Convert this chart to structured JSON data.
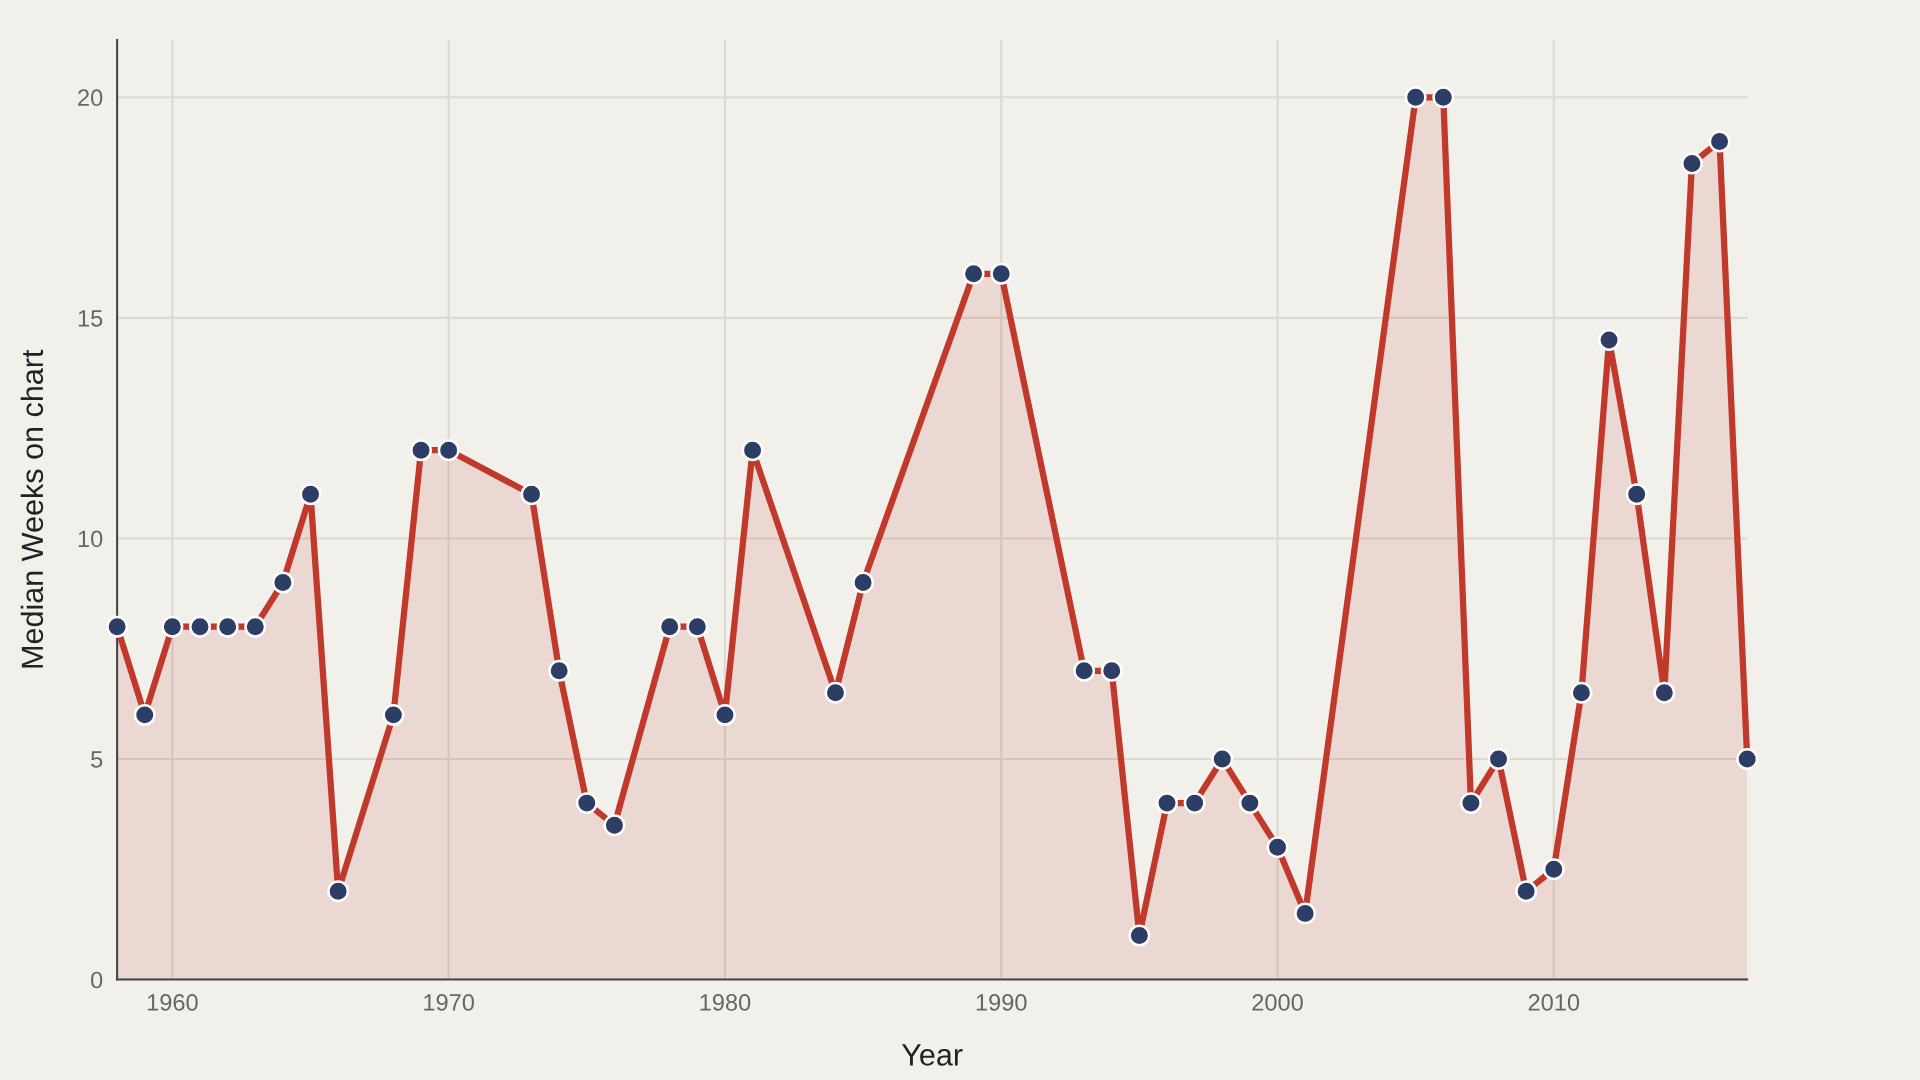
{
  "chart_data": {
    "type": "area",
    "xlabel": "Year",
    "ylabel": "Median Weeks on chart",
    "x": [
      1958,
      1959,
      1960,
      1961,
      1962,
      1963,
      1964,
      1965,
      1966,
      1968,
      1969,
      1970,
      1973,
      1974,
      1975,
      1976,
      1978,
      1979,
      1980,
      1981,
      1984,
      1985,
      1989,
      1990,
      1993,
      1994,
      1995,
      1996,
      1997,
      1998,
      1999,
      2000,
      2001,
      2005,
      2006,
      2007,
      2008,
      2009,
      2010,
      2011,
      2012,
      2013,
      2014,
      2015,
      2016,
      2017
    ],
    "series": [
      {
        "color": "#c0392b",
        "values": [
          8,
          6,
          8,
          8,
          8,
          8,
          9,
          11,
          2,
          6,
          12,
          12,
          11,
          7,
          4,
          3.5,
          8,
          8,
          6,
          12,
          6.5,
          9,
          16,
          16,
          7,
          7,
          1,
          4,
          4,
          5,
          4,
          3,
          1.5,
          20,
          20,
          4,
          5,
          2,
          2.5,
          6.5,
          14.5,
          11,
          6.5,
          18.5,
          19,
          5
        ]
      }
    ],
    "xlim": [
      1958,
      2017
    ],
    "ylim": [
      0,
      21.3
    ],
    "xticks": [
      1960,
      1970,
      1980,
      1990,
      2000,
      2010
    ],
    "yticks": [
      0,
      5,
      10,
      15,
      20
    ],
    "grid": true,
    "marker": "circle",
    "line_style": "solid"
  }
}
